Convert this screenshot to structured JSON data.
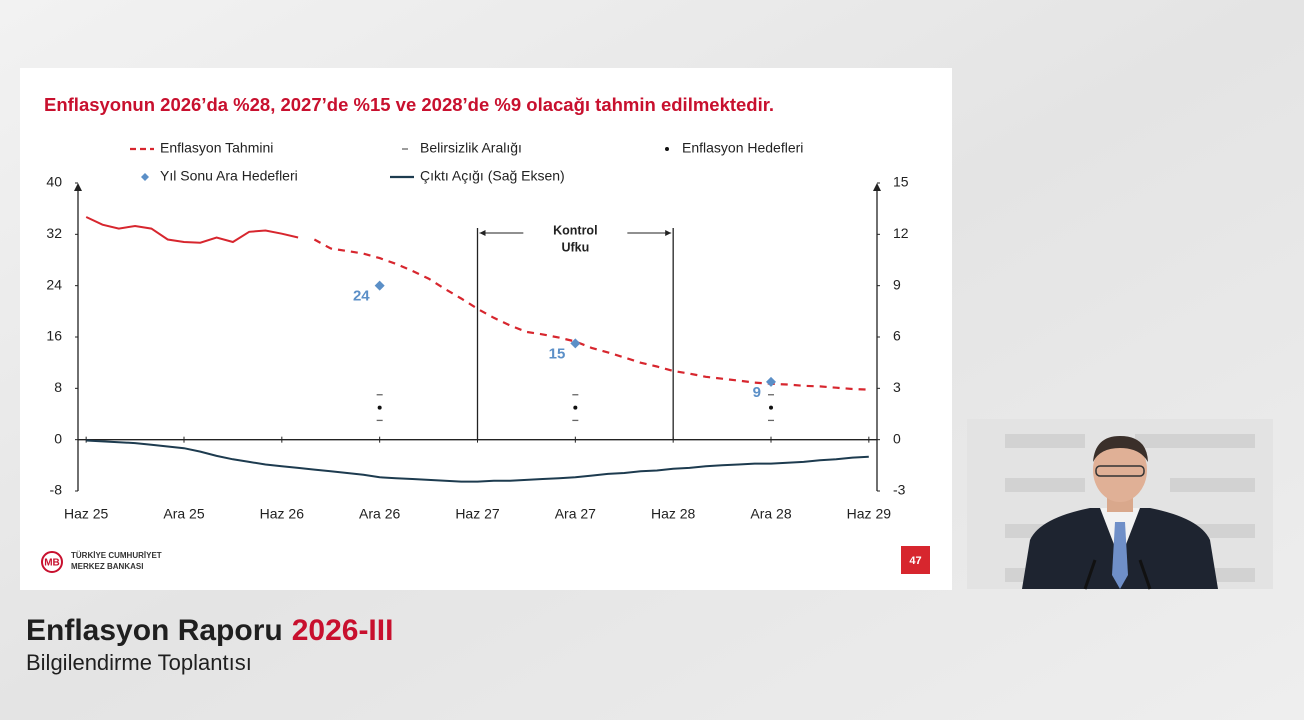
{
  "slide": {
    "logo": [
      "TÜRKİYE CUMHURİYET",
      "MERKEZ BANKASI"
    ],
    "page_number": "47"
  },
  "caption": {
    "title": "Enflasyon Raporu",
    "edition": "2026-III",
    "subtitle": "Bilgilendirme Toplantısı"
  },
  "chart_data": {
    "type": "line",
    "title": "Enflasyonun 2026’da %28, 2027’de %15 ve 2028’de %9 olacağı tahmin edilmektedir.",
    "x": [
      0,
      1,
      2,
      3,
      4,
      5,
      6,
      7,
      8,
      9,
      10,
      11,
      12,
      13,
      14,
      15,
      16,
      17,
      18,
      19,
      20,
      21,
      22,
      23,
      24,
      25,
      26,
      27,
      28,
      29,
      30,
      31,
      32,
      33,
      34,
      35,
      36,
      37,
      38,
      39,
      40,
      41,
      42,
      43,
      44,
      45,
      46,
      47,
      48
    ],
    "xlim": [
      -0.5,
      48.5
    ],
    "xticks": [
      {
        "value": 0,
        "label": "Haz 25"
      },
      {
        "value": 6,
        "label": "Ara 25"
      },
      {
        "value": 12,
        "label": "Haz 26"
      },
      {
        "value": 18,
        "label": "Ara 26"
      },
      {
        "value": 24,
        "label": "Haz 27"
      },
      {
        "value": 30,
        "label": "Ara 27"
      },
      {
        "value": 36,
        "label": "Haz 28"
      },
      {
        "value": 42,
        "label": "Ara 28"
      },
      {
        "value": 48,
        "label": "Haz 29"
      }
    ],
    "ylim": [
      -8,
      40
    ],
    "yticks": [
      -8,
      0,
      8,
      16,
      24,
      32,
      40
    ],
    "y2lim": [
      -3,
      15
    ],
    "y2ticks": [
      -3,
      0,
      3,
      6,
      9,
      12,
      15
    ],
    "annotation": {
      "text": [
        "Kontrol",
        "Ufku"
      ],
      "x": [
        24,
        36
      ]
    },
    "series": [
      {
        "name": "Enflasyon Tahmini",
        "color": "#d7262e",
        "dashed": true,
        "values": [
          null,
          null,
          null,
          null,
          null,
          null,
          null,
          null,
          null,
          null,
          null,
          null,
          null,
          null,
          31.2,
          29.8,
          29.4,
          29.0,
          28.3,
          27.4,
          26.3,
          25.1,
          23.5,
          22.0,
          20.4,
          19.0,
          17.8,
          16.8,
          16.4,
          15.9,
          15.3,
          14.3,
          13.6,
          12.8,
          12.0,
          11.4,
          10.7,
          10.3,
          9.8,
          9.5,
          9.2,
          8.9,
          8.7,
          8.6,
          8.4,
          8.3,
          8.1,
          7.9,
          7.8
        ]
      },
      {
        "name": "Belirsizlik Aralığı",
        "color": "#666666",
        "marker": "dash",
        "x": [
          18,
          18,
          30,
          30,
          42,
          42
        ],
        "values": [
          3,
          7,
          3,
          7,
          3,
          7
        ]
      },
      {
        "name": "Enflasyon Hedefleri",
        "color": "#111111",
        "marker": "dot",
        "x": [
          18,
          30,
          42
        ],
        "values": [
          5,
          5,
          5
        ]
      },
      {
        "name": "Yıl Sonu Ara Hedefleri",
        "color": "#5b8fc7",
        "marker": "diamond",
        "data_labels": true,
        "x": [
          18,
          30,
          42
        ],
        "values": [
          24,
          15,
          9
        ]
      },
      {
        "name": "Çıktı Açığı (Sağ Eksen)",
        "color": "#1d3b4f",
        "axis": "y2",
        "values": [
          -0.05,
          -0.1,
          -0.15,
          -0.2,
          -0.3,
          -0.4,
          -0.5,
          -0.7,
          -0.95,
          -1.15,
          -1.3,
          -1.45,
          -1.55,
          -1.65,
          -1.75,
          -1.85,
          -1.95,
          -2.05,
          -2.2,
          -2.25,
          -2.3,
          -2.35,
          -2.4,
          -2.45,
          -2.45,
          -2.4,
          -2.4,
          -2.35,
          -2.3,
          -2.25,
          -2.2,
          -2.1,
          -2.0,
          -1.95,
          -1.85,
          -1.8,
          -1.7,
          -1.65,
          -1.55,
          -1.5,
          -1.45,
          -1.4,
          -1.4,
          -1.35,
          -1.3,
          -1.2,
          -1.15,
          -1.05,
          -1.0
        ]
      },
      {
        "color": "#d7262e",
        "values": [
          34.7,
          33.5,
          32.9,
          33.3,
          32.9,
          31.2,
          30.8,
          30.7,
          31.5,
          30.8,
          32.4,
          32.6,
          32.1,
          31.5,
          null,
          null,
          null,
          null,
          null,
          null,
          null,
          null,
          null,
          null,
          null,
          null,
          null,
          null,
          null,
          null,
          null,
          null,
          null,
          null,
          null,
          null,
          null,
          null,
          null,
          null,
          null,
          null,
          null,
          null,
          null,
          null,
          null,
          null,
          null
        ]
      }
    ]
  }
}
